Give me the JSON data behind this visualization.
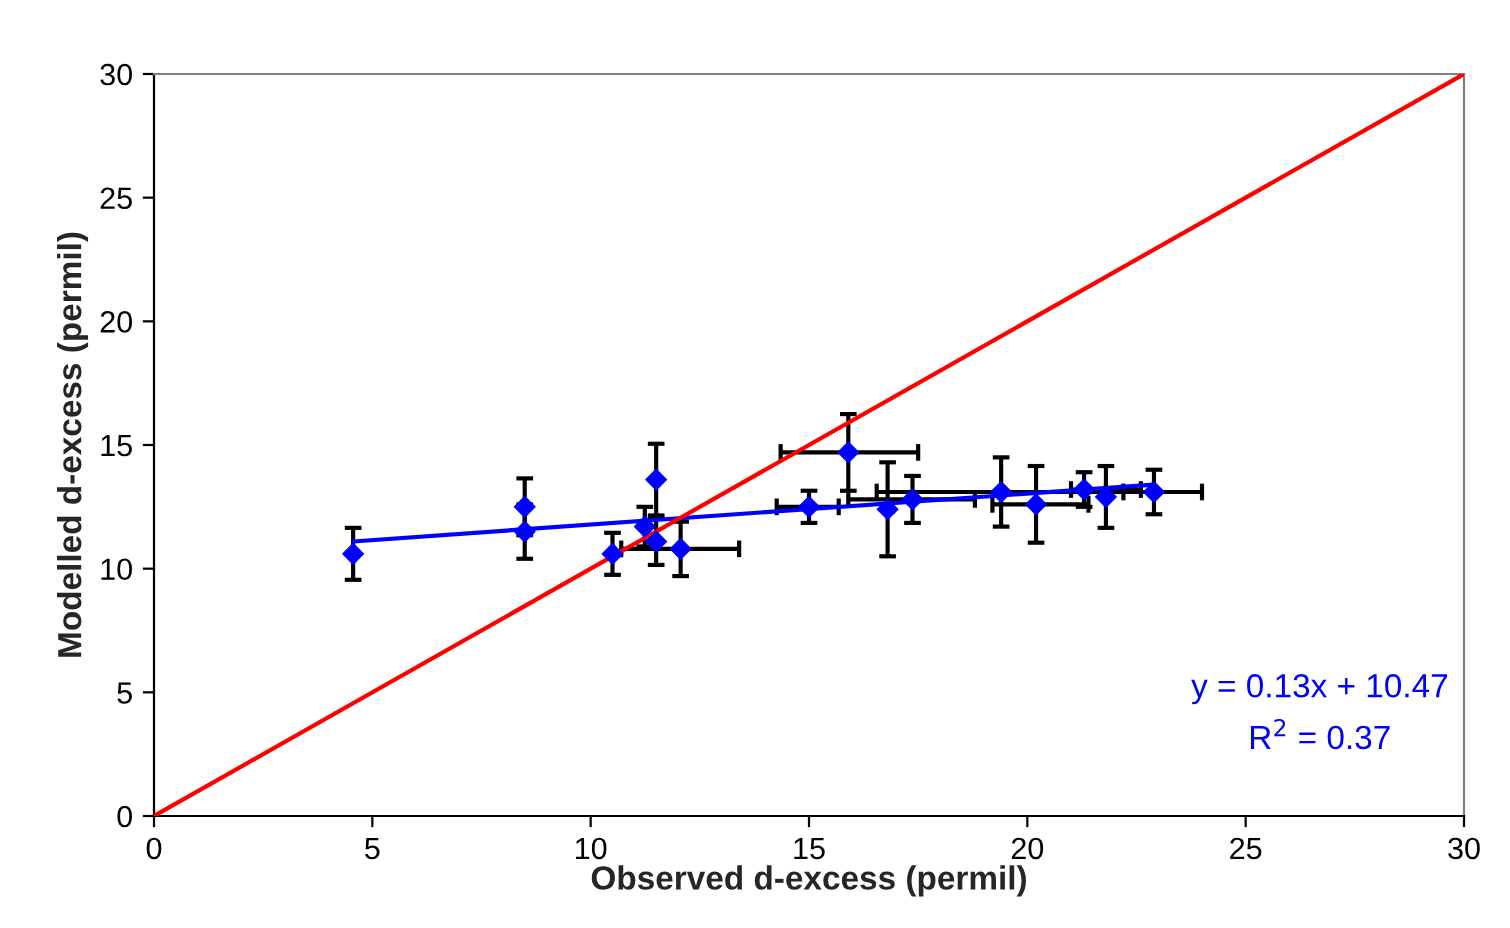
{
  "chart_data": {
    "type": "scatter",
    "xlabel": "Observed d-excess (permil)",
    "ylabel": "Modelled d-excess (permil)",
    "xlim": [
      0,
      30
    ],
    "ylim": [
      0,
      30
    ],
    "xticks": [
      0,
      5,
      10,
      15,
      20,
      25,
      30
    ],
    "yticks": [
      0,
      5,
      10,
      15,
      20,
      25,
      30
    ],
    "grid": false,
    "legend": false,
    "marker": "diamond",
    "series": [
      {
        "color": "#0000ff",
        "x": [
          4.56,
          8.49,
          8.49,
          10.5,
          11.24,
          11.5,
          11.5,
          12.06,
          15.0,
          15.9,
          16.8,
          17.37,
          19.4,
          20.2,
          21.3,
          21.8,
          22.9
        ],
        "values": [
          10.6,
          12.5,
          11.5,
          10.6,
          11.7,
          13.6,
          11.1,
          10.8,
          12.5,
          14.7,
          12.4,
          12.8,
          13.1,
          12.6,
          13.2,
          12.9,
          13.1
        ],
        "errors": [
          1.05,
          1.15,
          1.1,
          0.85,
          0.8,
          1.45,
          0.95,
          1.1,
          0.65,
          1.55,
          1.9,
          0.95,
          1.4,
          1.55,
          0.7,
          1.25,
          0.9
        ],
        "xerrors": [
          null,
          null,
          null,
          null,
          null,
          null,
          null,
          [
            10.7,
            13.4
          ],
          [
            14.26,
            15.68
          ],
          [
            14.35,
            17.5
          ],
          null,
          [
            15.9,
            18.8
          ],
          [
            16.55,
            22.2
          ],
          [
            19.2,
            21.4
          ],
          [
            21.0,
            22.6
          ],
          null,
          [
            21.8,
            24.0
          ]
        ]
      },
      {
        "type": "line",
        "color": "#0000ff",
        "marker": "none",
        "line_style": "solid",
        "x": [
          4.56,
          22.9
        ],
        "values": [
          11.1,
          13.4
        ]
      },
      {
        "type": "line",
        "color": "#ff0000",
        "marker": "none",
        "line_style": "solid",
        "x": [
          0,
          30
        ],
        "values": [
          0,
          30
        ]
      }
    ],
    "annotations": [
      {
        "text": "y = 0.13x + 10.47"
      },
      {
        "text": "R$^{2}$ = 0.37"
      }
    ]
  }
}
